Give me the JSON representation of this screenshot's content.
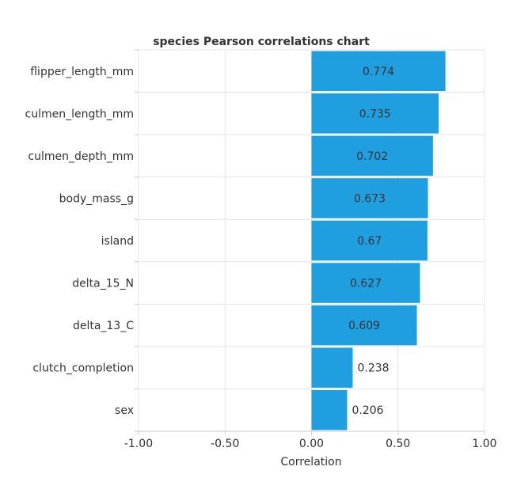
{
  "chart_data": {
    "type": "bar",
    "orientation": "horizontal",
    "title": "species Pearson correlations chart",
    "xlabel": "Correlation",
    "ylabel": "",
    "xlim": [
      -1.0,
      1.0
    ],
    "x_ticks": [
      "-1.00",
      "-0.50",
      "0.00",
      "0.50",
      "1.00"
    ],
    "x_tick_values": [
      -1.0,
      -0.5,
      0.0,
      0.5,
      1.0
    ],
    "grid": true,
    "legend": "none",
    "categories": [
      "flipper_length_mm",
      "culmen_length_mm",
      "culmen_depth_mm",
      "body_mass_g",
      "island",
      "delta_15_N",
      "delta_13_C",
      "clutch_completion",
      "sex"
    ],
    "values": [
      0.774,
      0.735,
      0.702,
      0.673,
      0.67,
      0.627,
      0.609,
      0.238,
      0.206
    ],
    "value_labels": [
      "0.774",
      "0.735",
      "0.702",
      "0.673",
      "0.67",
      "0.627",
      "0.609",
      "0.238",
      "0.206"
    ],
    "colors": {
      "bar": "#1f9fe0",
      "grid": "#e6e6e6",
      "axis": "#cccccc",
      "text": "#333333"
    }
  }
}
